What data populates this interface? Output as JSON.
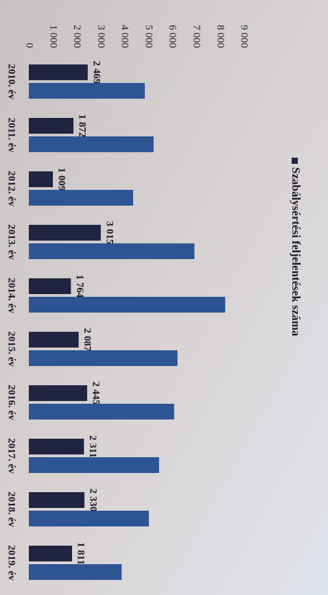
{
  "chart_data": {
    "type": "bar",
    "categories": [
      "2010. év",
      "2011. év",
      "2012. év",
      "2013. év",
      "2014. év",
      "2015. év",
      "2016. év",
      "2017. év",
      "2018. év",
      "2019. év"
    ],
    "series": [
      {
        "name": "Szabálysértési feljelentések száma",
        "color": "#1f2440",
        "values": [
          2469,
          1872,
          1009,
          3015,
          1764,
          2087,
          2445,
          2311,
          2330,
          1811
        ],
        "value_labels": [
          "2 469",
          "1 872",
          "1 009",
          "3 015",
          "1 764",
          "2 087",
          "2 445",
          "2 311",
          "2 330",
          "1 811"
        ]
      },
      {
        "color": "#2e5593",
        "values": [
          4860,
          5230,
          4370,
          6940,
          8230,
          6230,
          6090,
          5460,
          5030,
          3890
        ]
      }
    ],
    "ylim": [
      0,
      9000
    ],
    "yticks": [
      0,
      {
        "value": 1000,
        "label": "1 000"
      },
      {
        "value": 2000,
        "label": "2 000"
      },
      {
        "value": 3000,
        "label": "3 000"
      },
      {
        "value": 4000,
        "label": "4 000"
      },
      {
        "value": 5000,
        "label": "5 000"
      },
      {
        "value": 6000,
        "label": "6 000"
      },
      {
        "value": 7000,
        "label": "7 000"
      },
      {
        "value": 8000,
        "label": "8 000"
      },
      {
        "value": 9000,
        "label": "9 000"
      }
    ],
    "legend": "right"
  }
}
